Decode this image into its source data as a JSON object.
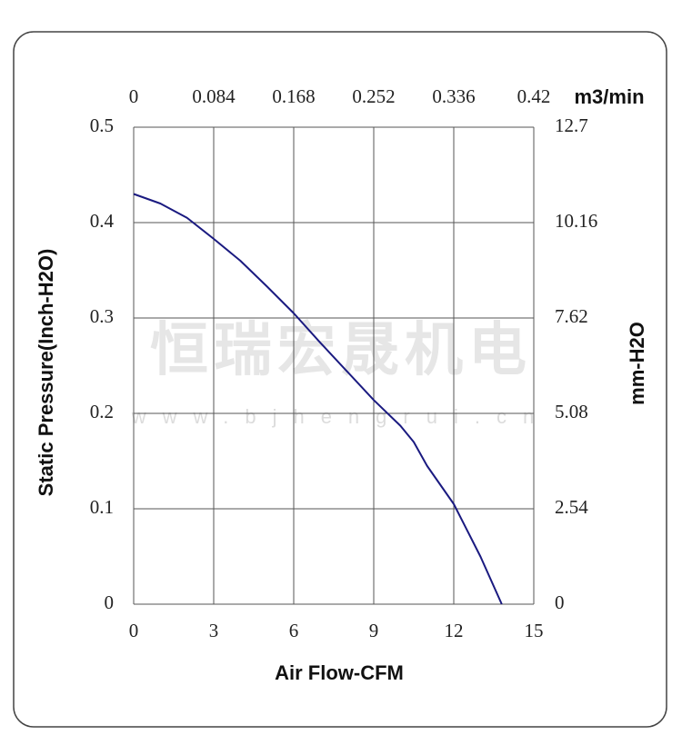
{
  "chart_data": {
    "type": "line",
    "x_label": "Air Flow-CFM",
    "y_label": "Static Pressure(Inch-H2O)",
    "y2_label": "mm-H2O",
    "x2_label": "m3/min",
    "watermark": "恒瑞宏晟机电",
    "watermark_url": "www.bjhengrui.cn",
    "xlim": [
      0,
      15
    ],
    "xticks": [
      0,
      3,
      6,
      9,
      12,
      15
    ],
    "x2lim": [
      0,
      0.42
    ],
    "x2ticks": [
      0,
      0.084,
      0.168,
      0.252,
      0.336,
      0.42
    ],
    "ylim": [
      0,
      0.5
    ],
    "yticks": [
      0,
      0.1,
      0.2,
      0.3,
      0.4,
      0.5
    ],
    "y2lim": [
      0,
      12.7
    ],
    "y2ticks": [
      0,
      2.54,
      5.08,
      7.62,
      10.16,
      12.7
    ],
    "grid": true,
    "x": [
      0,
      1,
      2,
      3,
      4,
      5,
      6,
      7,
      8,
      9,
      10,
      10.5,
      11,
      12,
      13,
      13.8
    ],
    "series": [
      {
        "color": "#1a1a80",
        "values": [
          0.43,
          0.42,
          0.405,
          0.383,
          0.36,
          0.333,
          0.305,
          0.274,
          0.244,
          0.214,
          0.187,
          0.17,
          0.145,
          0.105,
          0.05,
          0
        ]
      }
    ]
  }
}
